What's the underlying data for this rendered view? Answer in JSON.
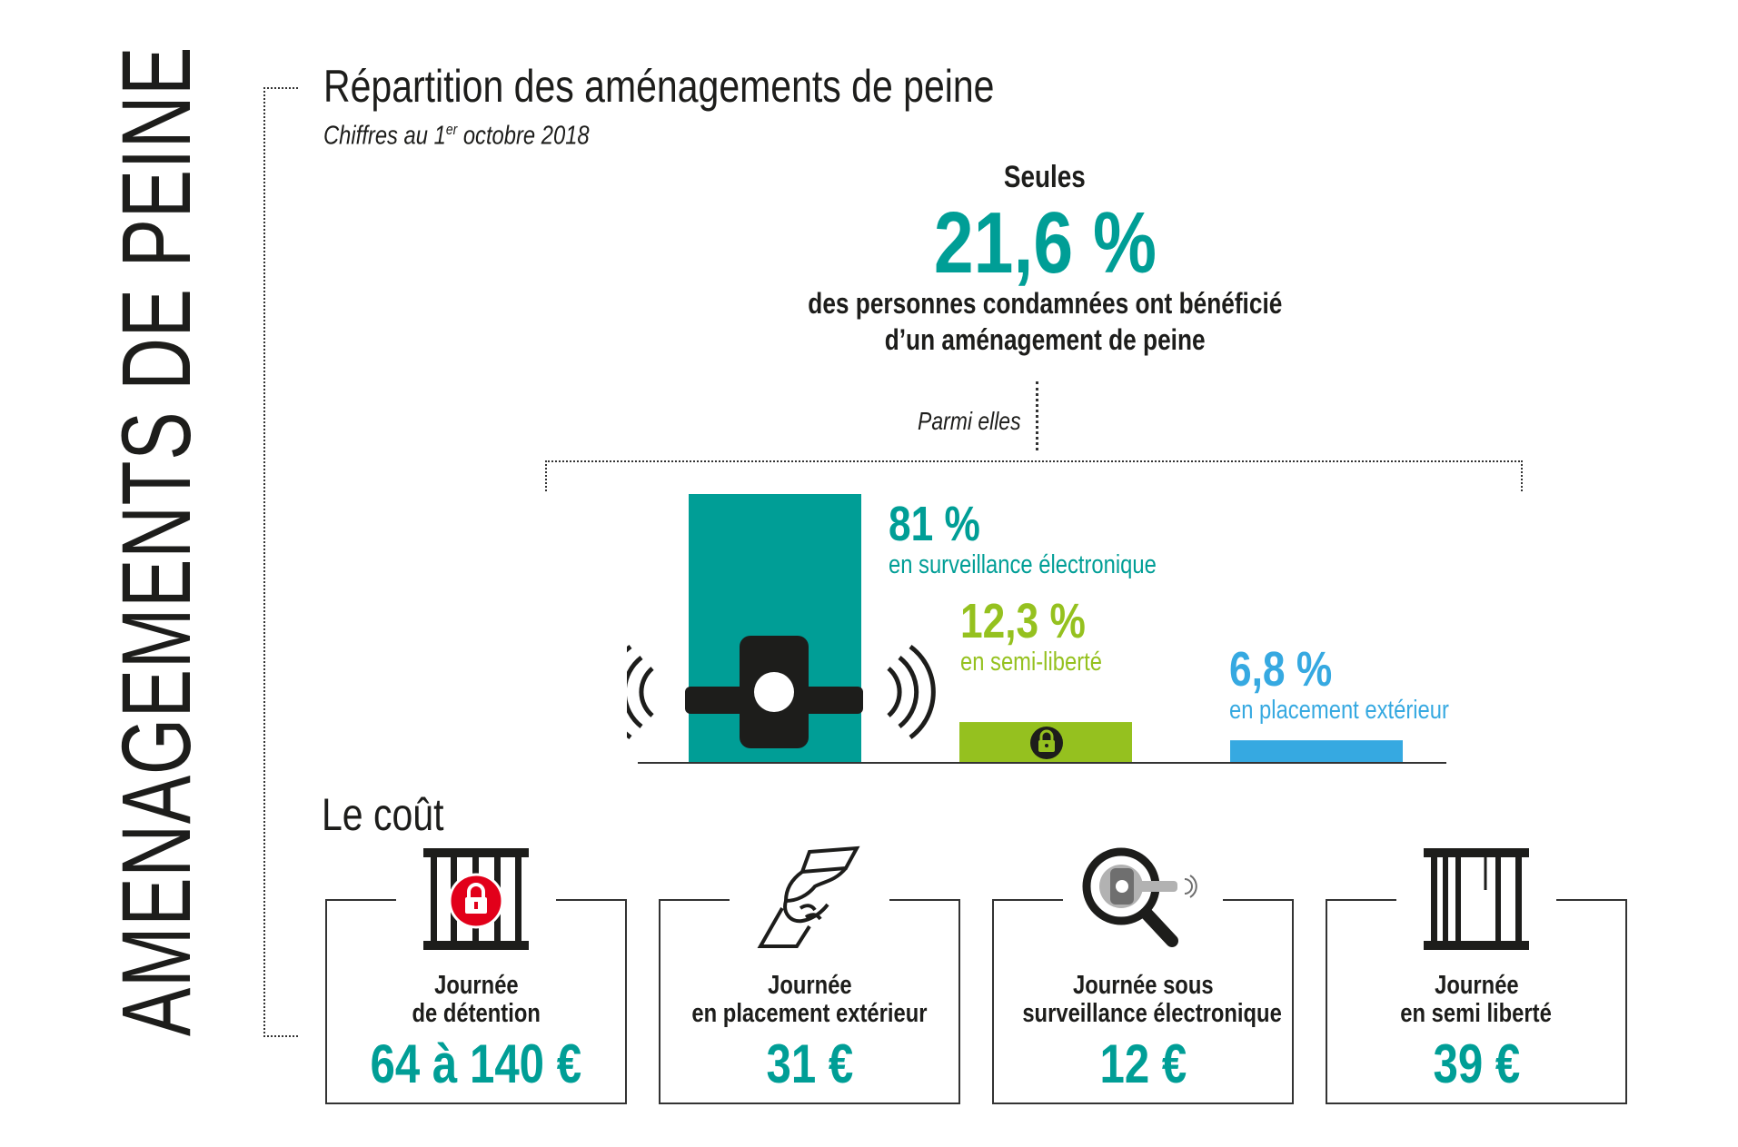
{
  "vertical_title": "AMENAGEMENTS DE PEINE",
  "header": {
    "title": "Répartition des aménagements de peine",
    "subtitle_prefix": "Chiffres au 1",
    "subtitle_sup": "er",
    "subtitle_suffix": " octobre 2018"
  },
  "highlight": {
    "intro": "Seules",
    "value": "21,6 %",
    "line1": "des personnes condamnées ont bénéficié",
    "line2": "d’un aménagement de peine"
  },
  "parmi": "Parmi elles",
  "chart_data": {
    "type": "bar",
    "categories": [
      "en surveillance électronique",
      "en semi-liberté",
      "en placement extérieur"
    ],
    "values": [
      81,
      12.3,
      6.8
    ],
    "value_labels": [
      "81 %",
      "12,3 %",
      "6,8 %"
    ],
    "colors": [
      "#009e96",
      "#95c11f",
      "#36a9e1"
    ],
    "icons": [
      "electronic-bracelet-icon",
      "padlock-icon",
      ""
    ],
    "title": "",
    "xlabel": "",
    "ylabel": "",
    "ylim": [
      0,
      81
    ],
    "grid": false,
    "legend": "none"
  },
  "cost": {
    "title": "Le coût",
    "items": [
      {
        "line1": "Journée",
        "line2": "de détention",
        "value": "64 à 140 €",
        "icon": "prison-cell-lock-icon"
      },
      {
        "line1": "Journée",
        "line2": "en placement extérieur",
        "value": "31 €",
        "icon": "handshake-icon"
      },
      {
        "line1": "Journée sous",
        "line2": "surveillance électronique",
        "value": "12 €",
        "icon": "magnifier-bracelet-icon"
      },
      {
        "line1": "Journée",
        "line2": "en semi liberté",
        "value": "39 €",
        "icon": "open-cell-icon"
      }
    ]
  }
}
